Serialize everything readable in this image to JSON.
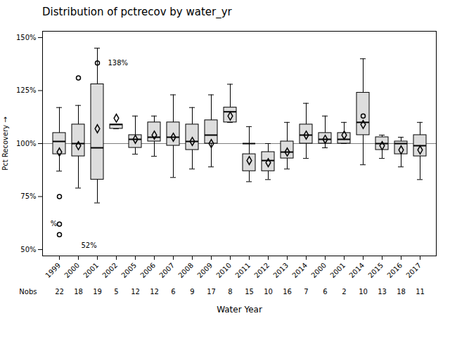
{
  "chart_data": {
    "type": "box",
    "title": "Distribution of pctrecov by water_yr",
    "xlabel": "Water Year",
    "ylabel": "Pct Recovery",
    "categories": [
      "1999",
      "2000",
      "2001",
      "2002",
      "2005",
      "2006",
      "2007",
      "2008",
      "2009",
      "2010",
      "2011",
      "2012",
      "2013",
      "2014",
      "2000",
      "2001",
      "2014",
      "2015",
      "2016",
      "2017"
    ],
    "boxes": [
      {
        "q1": 95,
        "median": 101,
        "q3": 105,
        "whislo": 87,
        "whishi": 117,
        "mean": 96,
        "fliers": [
          75,
          57,
          62
        ]
      },
      {
        "q1": 94,
        "median": 100,
        "q3": 109,
        "whislo": 79,
        "whishi": 118,
        "mean": 99,
        "fliers": [
          131
        ]
      },
      {
        "q1": 83,
        "median": 98,
        "q3": 128,
        "whislo": 72,
        "whishi": 145,
        "mean": 107,
        "fliers": [
          138
        ]
      },
      {
        "q1": 107,
        "median": 109,
        "q3": 109,
        "whislo": 107,
        "whishi": 109,
        "mean": 112,
        "fliers": []
      },
      {
        "q1": 98,
        "median": 102,
        "q3": 104,
        "whislo": 95,
        "whishi": 113,
        "mean": 102,
        "fliers": []
      },
      {
        "q1": 101,
        "median": 103,
        "q3": 110,
        "whislo": 94,
        "whishi": 113,
        "mean": 104,
        "fliers": []
      },
      {
        "q1": 99,
        "median": 103,
        "q3": 110,
        "whislo": 84,
        "whishi": 123,
        "mean": 103,
        "fliers": []
      },
      {
        "q1": 97,
        "median": 101,
        "q3": 109,
        "whislo": 88,
        "whishi": 117,
        "mean": 101,
        "fliers": []
      },
      {
        "q1": 100,
        "median": 104,
        "q3": 111,
        "whislo": 89,
        "whishi": 123,
        "mean": 100,
        "fliers": []
      },
      {
        "q1": 110,
        "median": 115,
        "q3": 117,
        "whislo": 110,
        "whishi": 128,
        "mean": 113,
        "fliers": []
      },
      {
        "q1": 87,
        "median": 100,
        "q3": 95,
        "whislo": 82,
        "whishi": 108,
        "mean": 92,
        "fliers": []
      },
      {
        "q1": 87,
        "median": 92,
        "q3": 96,
        "whislo": 83,
        "whishi": 100,
        "mean": 91,
        "fliers": []
      },
      {
        "q1": 93,
        "median": 96,
        "q3": 101,
        "whislo": 88,
        "whishi": 110,
        "mean": 96,
        "fliers": []
      },
      {
        "q1": 100,
        "median": 104,
        "q3": 109,
        "whislo": 93,
        "whishi": 119,
        "mean": 104,
        "fliers": []
      },
      {
        "q1": 100,
        "median": 102,
        "q3": 105,
        "whislo": 98,
        "whishi": 113,
        "mean": 102,
        "fliers": []
      },
      {
        "q1": 100,
        "median": 102,
        "q3": 105,
        "whislo": 100,
        "whishi": 110,
        "mean": 104,
        "fliers": []
      },
      {
        "q1": 104,
        "median": 110,
        "q3": 124,
        "whislo": 90,
        "whishi": 140,
        "mean": 109,
        "fliers": [
          113
        ]
      },
      {
        "q1": 97,
        "median": 100,
        "q3": 103,
        "whislo": 93,
        "whishi": 104,
        "mean": 99,
        "fliers": []
      },
      {
        "q1": 95,
        "median": 100,
        "q3": 101,
        "whislo": 89,
        "whishi": 103,
        "mean": 97,
        "fliers": []
      },
      {
        "q1": 94,
        "median": 99,
        "q3": 104,
        "whislo": 83,
        "whishi": 110,
        "mean": 97,
        "fliers": []
      }
    ],
    "nobs_label": "Nobs",
    "nobs": [
      22,
      18,
      19,
      5,
      12,
      12,
      6,
      9,
      17,
      8,
      15,
      10,
      16,
      7,
      6,
      2,
      10,
      13,
      18,
      11
    ],
    "ref_line": 100,
    "ylim": [
      47,
      153
    ],
    "yticks": [
      {
        "value": 50,
        "label": "50%"
      },
      {
        "value": 75,
        "label": "75%"
      },
      {
        "value": 100,
        "label": "100%"
      },
      {
        "value": 125,
        "label": "125%"
      },
      {
        "value": 150,
        "label": "150%"
      }
    ],
    "annotations": [
      {
        "text": "138%",
        "x": "2001",
        "y": 138
      },
      {
        "text": "52%",
        "x": "2000",
        "y": 52
      },
      {
        "text": "%",
        "x": "1999",
        "y": 62
      }
    ]
  }
}
